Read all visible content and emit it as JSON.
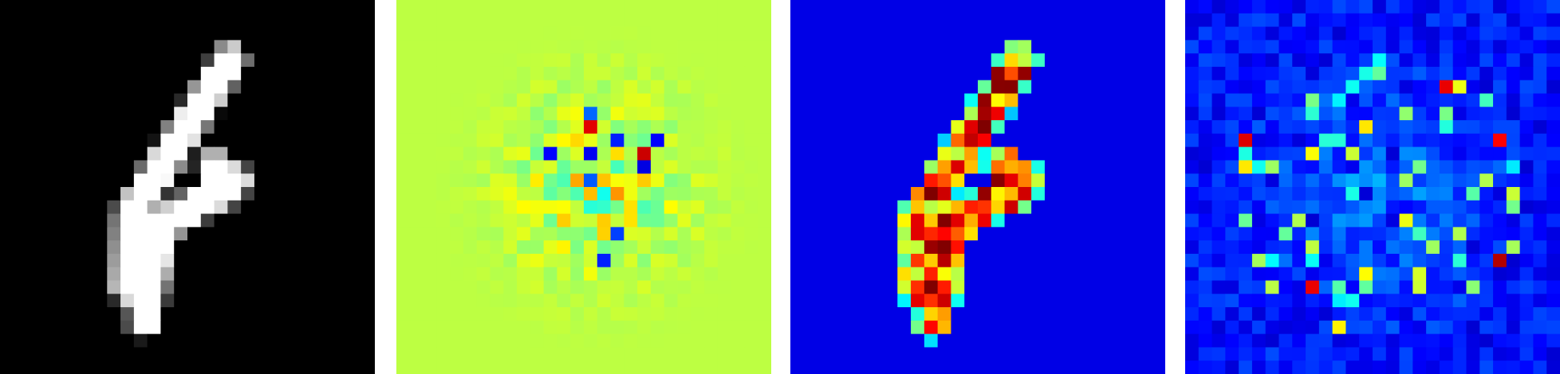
{
  "figure": {
    "grid_size": 28,
    "panels": [
      {
        "id": "input-digit",
        "colormap": "gray"
      },
      {
        "id": "signed-attribution",
        "colormap": "jet"
      },
      {
        "id": "input-times-gradient",
        "colormap": "jet"
      },
      {
        "id": "gradient-magnitude",
        "colormap": "jet"
      }
    ]
  }
}
